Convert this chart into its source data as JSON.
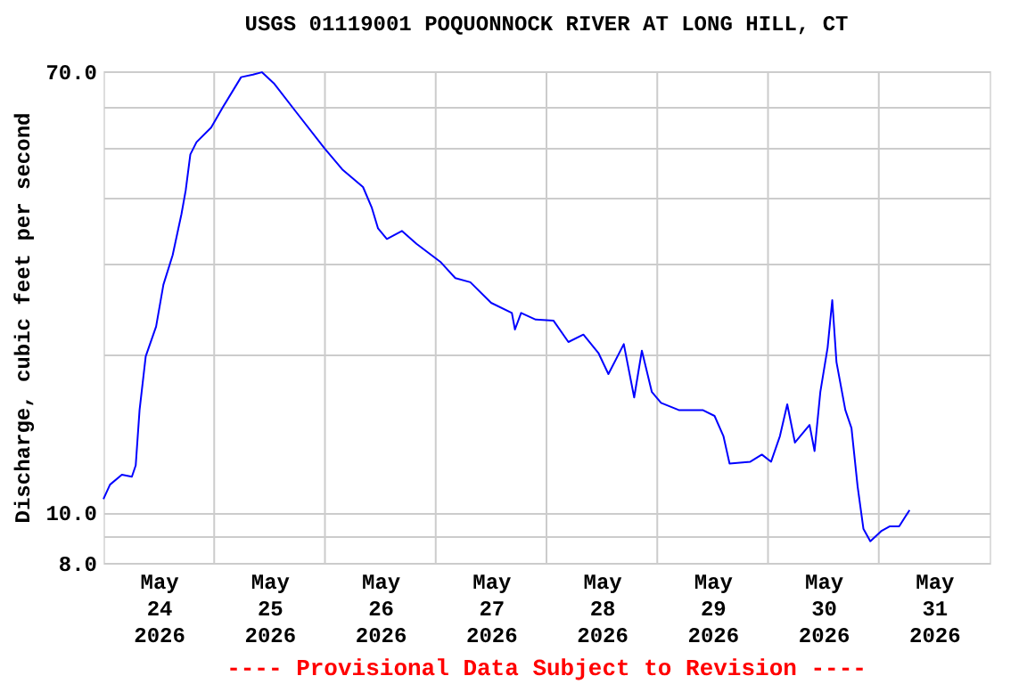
{
  "chart_data": {
    "type": "line",
    "title": "USGS 01119001 POQUONNOCK RIVER AT LONG HILL, CT",
    "ylabel": "Discharge, cubic feet per second",
    "annotations": [
      "---- Provisional Data Subject to Revision ----"
    ],
    "log": "y",
    "grid": true,
    "line_style": "solid",
    "marker": "none",
    "xlim": [
      "2026-05-24T00:00",
      "2026-06-01T00:00"
    ],
    "xticks": [
      {
        "value": "2026-05-24T12:00",
        "label": "May\n24\n2026"
      },
      {
        "value": "2026-05-25T00:00",
        "label": null
      },
      {
        "value": "2026-05-25T12:00",
        "label": "May\n25\n2026"
      },
      {
        "value": "2026-05-26T00:00",
        "label": null
      },
      {
        "value": "2026-05-26T12:00",
        "label": "May\n26\n2026"
      },
      {
        "value": "2026-05-27T00:00",
        "label": null
      },
      {
        "value": "2026-05-27T12:00",
        "label": "May\n27\n2026"
      },
      {
        "value": "2026-05-28T00:00",
        "label": null
      },
      {
        "value": "2026-05-28T12:00",
        "label": "May\n28\n2026"
      },
      {
        "value": "2026-05-29T00:00",
        "label": null
      },
      {
        "value": "2026-05-29T12:00",
        "label": "May\n29\n2026"
      },
      {
        "value": "2026-05-30T00:00",
        "label": null
      },
      {
        "value": "2026-05-30T12:00",
        "label": "May\n30\n2026"
      },
      {
        "value": "2026-05-31T00:00",
        "label": null
      },
      {
        "value": "2026-05-31T12:00",
        "label": "May\n31\n2026"
      }
    ],
    "ylim": [
      8,
      70
    ],
    "yticks": [
      {
        "value": 8,
        "label": "8.0"
      },
      {
        "value": 9,
        "label": null
      },
      {
        "value": 10,
        "label": "10.0"
      },
      {
        "value": 20,
        "label": null
      },
      {
        "value": 30,
        "label": null
      },
      {
        "value": 40,
        "label": null
      },
      {
        "value": 50,
        "label": null
      },
      {
        "value": 60,
        "label": null
      },
      {
        "value": 70,
        "label": "70.0"
      }
    ],
    "x": [
      "2026-05-24T00:00",
      "2026-05-24T01:26",
      "2026-05-24T04:00",
      "2026-05-24T06:10",
      "2026-05-24T07:00",
      "2026-05-24T07:50",
      "2026-05-24T09:10",
      "2026-05-24T11:25",
      "2026-05-24T13:00",
      "2026-05-24T15:00",
      "2026-05-24T16:55",
      "2026-05-24T17:50",
      "2026-05-24T18:50",
      "2026-05-24T20:10",
      "2026-05-24T23:20",
      "2026-05-25T01:55",
      "2026-05-25T05:50",
      "2026-05-25T08:25",
      "2026-05-25T10:20",
      "2026-05-25T12:55",
      "2026-05-25T17:25",
      "2026-05-25T23:55",
      "2026-05-26T03:45",
      "2026-05-26T08:15",
      "2026-05-26T10:10",
      "2026-05-26T11:30",
      "2026-05-26T13:25",
      "2026-05-26T16:40",
      "2026-05-26T19:50",
      "2026-05-27T01:00",
      "2026-05-27T04:15",
      "2026-05-27T07:30",
      "2026-05-27T12:00",
      "2026-05-27T16:30",
      "2026-05-27T17:10",
      "2026-05-27T18:30",
      "2026-05-27T21:40",
      "2026-05-28T01:30",
      "2026-05-28T04:45",
      "2026-05-28T08:00",
      "2026-05-28T11:15",
      "2026-05-28T13:25",
      "2026-05-28T16:45",
      "2026-05-28T19:00",
      "2026-05-28T20:40",
      "2026-05-28T22:50",
      "2026-05-29T00:50",
      "2026-05-29T04:40",
      "2026-05-29T09:50",
      "2026-05-29T12:25",
      "2026-05-29T14:20",
      "2026-05-29T15:40",
      "2026-05-29T20:10",
      "2026-05-29T22:40",
      "2026-05-30T00:40",
      "2026-05-30T02:35",
      "2026-05-30T04:10",
      "2026-05-30T05:50",
      "2026-05-30T09:00",
      "2026-05-30T10:05",
      "2026-05-30T11:20",
      "2026-05-30T12:55",
      "2026-05-30T13:55",
      "2026-05-30T14:50",
      "2026-05-30T16:45",
      "2026-05-30T18:05",
      "2026-05-30T19:25",
      "2026-05-30T20:40",
      "2026-05-30T22:10",
      "2026-05-31T00:30",
      "2026-05-31T02:25",
      "2026-05-31T04:25",
      "2026-05-31T06:40"
    ],
    "series": [
      {
        "color": "#0000ff",
        "values": [
          10.6,
          11.3,
          11.8,
          11.7,
          12.3,
          15.7,
          19.9,
          22.7,
          27.3,
          31.1,
          37.3,
          41.4,
          48.5,
          51.2,
          54.6,
          59.8,
          68.2,
          69,
          69.7,
          66.4,
          59,
          49.8,
          45.4,
          42,
          38.3,
          35,
          33.4,
          34.6,
          32.7,
          30.2,
          28.1,
          27.6,
          25.2,
          24.1,
          22.4,
          24.1,
          23.4,
          23.3,
          21.2,
          21.9,
          20.2,
          18.4,
          21,
          16.6,
          20.4,
          17,
          16.2,
          15.7,
          15.7,
          15.3,
          14,
          12.4,
          12.5,
          12.9,
          12.5,
          14,
          16.1,
          13.6,
          14.7,
          13.1,
          17,
          20.7,
          25.5,
          19.4,
          15.7,
          14.5,
          11.2,
          9.3,
          8.8,
          9.2,
          9.4,
          9.4,
          10.1
        ]
      }
    ]
  }
}
